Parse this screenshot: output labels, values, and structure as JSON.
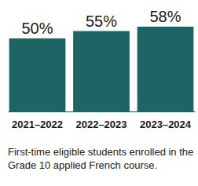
{
  "chart_data": {
    "type": "bar",
    "title": "First-time eligible students enrolled in the Grade 10 applied French course.",
    "categories": [
      "2021–2022",
      "2022–2023",
      "2023–2024"
    ],
    "values": [
      50,
      55,
      58
    ],
    "value_labels": [
      "50%",
      "55%",
      "58%"
    ],
    "color": "#1e6464",
    "ylim": [
      0,
      58
    ],
    "data_labels": true,
    "tick_labels": "x",
    "grid": false
  }
}
